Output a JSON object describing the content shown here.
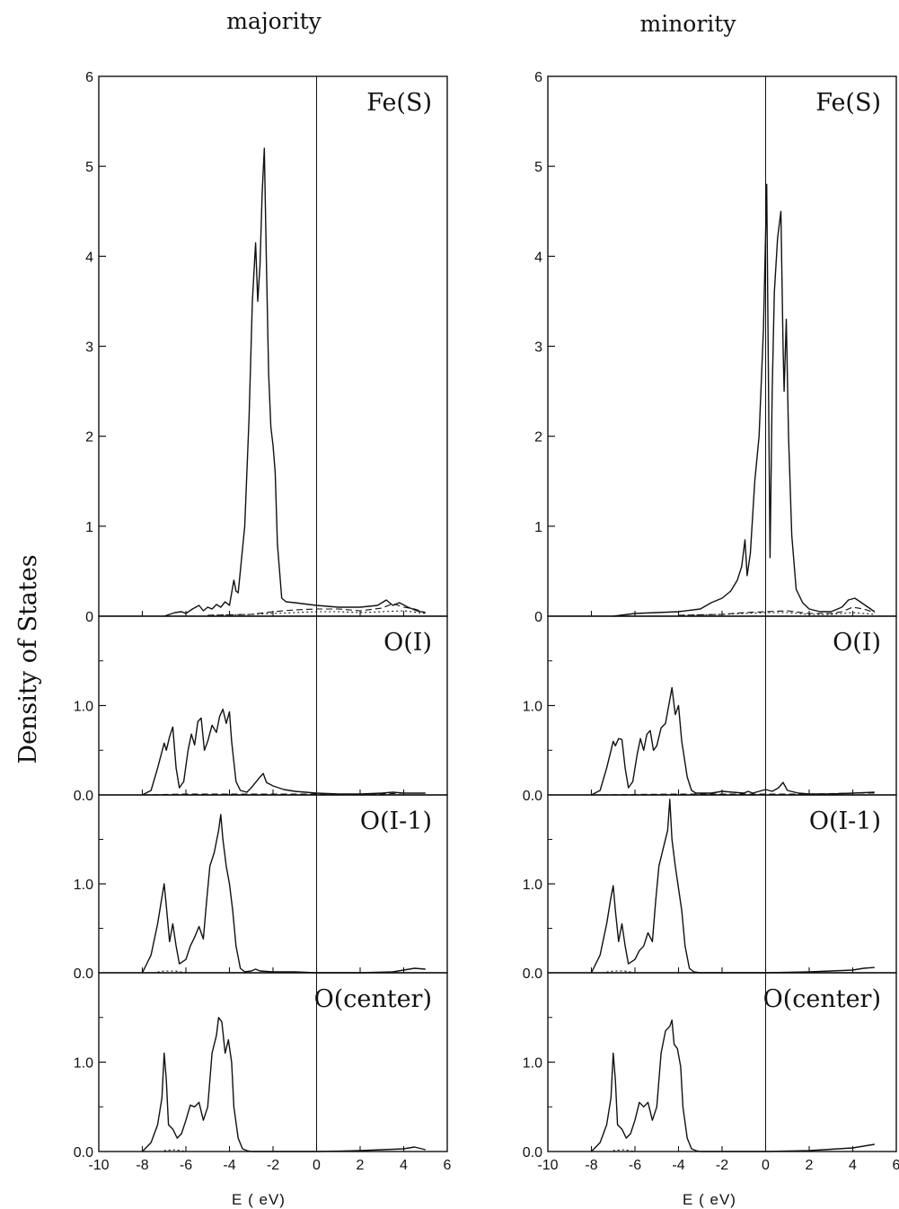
{
  "figure": {
    "ylabel": "Density of States",
    "xlabel": "E ( eV)",
    "columns": [
      {
        "title": "majority"
      },
      {
        "title": "minority"
      }
    ]
  },
  "chart_data": [
    {
      "type": "line",
      "column": "majority",
      "panel_label": "Fe(S)",
      "xlim": [
        -10,
        6
      ],
      "ylim": [
        0,
        6
      ],
      "xticks": [
        -10,
        -8,
        -6,
        -4,
        -2,
        0,
        2,
        4,
        6
      ],
      "yticks": [
        0,
        1,
        2,
        3,
        4,
        5,
        6
      ],
      "ytick_labels": [
        "0",
        "1",
        "2",
        "3",
        "4",
        "5",
        "6"
      ],
      "vline_x": 0,
      "series": [
        {
          "style": "solid",
          "x": [
            -7.0,
            -6.5,
            -6.2,
            -6.0,
            -5.7,
            -5.4,
            -5.2,
            -5.0,
            -4.8,
            -4.6,
            -4.4,
            -4.2,
            -4.0,
            -3.8,
            -3.7,
            -3.6,
            -3.5,
            -3.3,
            -3.1,
            -2.95,
            -2.8,
            -2.7,
            -2.6,
            -2.5,
            -2.4,
            -2.3,
            -2.2,
            -2.1,
            -2.0,
            -1.9,
            -1.8,
            -1.6,
            -1.4,
            -1.0,
            0.0,
            1.0,
            2.0,
            2.8,
            3.2,
            3.5,
            3.8,
            4.2,
            4.6,
            5.0
          ],
          "y": [
            0.0,
            0.04,
            0.05,
            0.03,
            0.08,
            0.12,
            0.06,
            0.1,
            0.08,
            0.13,
            0.1,
            0.16,
            0.12,
            0.4,
            0.28,
            0.26,
            0.5,
            1.0,
            2.2,
            3.5,
            4.15,
            3.5,
            3.9,
            4.7,
            5.2,
            3.9,
            2.7,
            2.1,
            1.9,
            1.6,
            0.8,
            0.2,
            0.16,
            0.15,
            0.12,
            0.1,
            0.1,
            0.12,
            0.18,
            0.12,
            0.15,
            0.1,
            0.06,
            0.04
          ]
        },
        {
          "style": "dashed",
          "x": [
            -5.0,
            -3.0,
            -2.0,
            -1.0,
            0.0,
            1.0,
            2.0,
            3.0,
            3.5,
            4.0,
            4.5,
            5.0
          ],
          "y": [
            0.01,
            0.02,
            0.05,
            0.07,
            0.08,
            0.08,
            0.06,
            0.09,
            0.14,
            0.1,
            0.08,
            0.04
          ]
        },
        {
          "style": "dotted",
          "x": [
            -5.0,
            -3.0,
            -2.0,
            -1.0,
            0.0,
            1.0,
            2.0,
            3.0,
            4.0,
            5.0
          ],
          "y": [
            0.01,
            0.02,
            0.03,
            0.04,
            0.05,
            0.05,
            0.04,
            0.05,
            0.06,
            0.03
          ]
        }
      ]
    },
    {
      "type": "line",
      "column": "majority",
      "panel_label": "O(I)",
      "xlim": [
        -10,
        6
      ],
      "ylim": [
        0,
        2.0
      ],
      "xticks": [
        -10,
        -8,
        -6,
        -4,
        -2,
        0,
        2,
        4,
        6
      ],
      "yticks": [
        0.0,
        1.0
      ],
      "ytick_labels": [
        "0.0",
        "1.0"
      ],
      "minor_yticks": [
        0.5,
        1.5
      ],
      "vline_x": 0,
      "series": [
        {
          "style": "solid",
          "x": [
            -8.0,
            -7.6,
            -7.3,
            -7.0,
            -6.9,
            -6.75,
            -6.6,
            -6.45,
            -6.3,
            -6.1,
            -5.9,
            -5.75,
            -5.6,
            -5.45,
            -5.3,
            -5.15,
            -5.0,
            -4.8,
            -4.6,
            -4.45,
            -4.3,
            -4.15,
            -4.0,
            -3.9,
            -3.7,
            -3.5,
            -3.2,
            -3.0,
            -2.8,
            -2.6,
            -2.45,
            -2.3,
            -2.0,
            -1.5,
            -1.0,
            0.0,
            1.0,
            2.0,
            3.0,
            3.5,
            4.0,
            5.0
          ],
          "y": [
            0.0,
            0.05,
            0.3,
            0.58,
            0.5,
            0.65,
            0.76,
            0.3,
            0.08,
            0.15,
            0.5,
            0.68,
            0.56,
            0.82,
            0.86,
            0.5,
            0.6,
            0.78,
            0.7,
            0.88,
            0.96,
            0.8,
            0.93,
            0.6,
            0.15,
            0.05,
            0.03,
            0.08,
            0.14,
            0.2,
            0.24,
            0.14,
            0.1,
            0.06,
            0.04,
            0.02,
            0.01,
            0.01,
            0.02,
            0.03,
            0.02,
            0.02
          ]
        },
        {
          "style": "dashed",
          "x": [
            -8.0,
            -6.0,
            -4.0,
            -2.0,
            0.0,
            2.0,
            3.0,
            4.0,
            5.0
          ],
          "y": [
            0.0,
            0.01,
            0.01,
            0.01,
            0.01,
            0.01,
            0.01,
            0.02,
            0.02
          ]
        }
      ]
    },
    {
      "type": "line",
      "column": "majority",
      "panel_label": "O(I-1)",
      "xlim": [
        -10,
        6
      ],
      "ylim": [
        0,
        2.0
      ],
      "xticks": [
        -10,
        -8,
        -6,
        -4,
        -2,
        0,
        2,
        4,
        6
      ],
      "yticks": [
        0.0,
        1.0
      ],
      "ytick_labels": [
        "0.0",
        "1.0"
      ],
      "minor_yticks": [
        0.5,
        1.5
      ],
      "vline_x": 0,
      "series": [
        {
          "style": "solid",
          "x": [
            -8.0,
            -7.6,
            -7.3,
            -7.1,
            -7.0,
            -6.9,
            -6.75,
            -6.6,
            -6.45,
            -6.3,
            -6.0,
            -5.8,
            -5.6,
            -5.4,
            -5.2,
            -5.05,
            -4.9,
            -4.7,
            -4.5,
            -4.4,
            -4.3,
            -4.15,
            -4.0,
            -3.85,
            -3.7,
            -3.5,
            -3.3,
            -3.0,
            -2.8,
            -2.6,
            -2.0,
            -1.0,
            0.0,
            2.0,
            3.5,
            4.0,
            4.5,
            5.0
          ],
          "y": [
            0.0,
            0.2,
            0.55,
            0.85,
            1.0,
            0.75,
            0.35,
            0.55,
            0.3,
            0.1,
            0.15,
            0.3,
            0.4,
            0.52,
            0.38,
            0.8,
            1.2,
            1.35,
            1.6,
            1.78,
            1.5,
            1.2,
            1.0,
            0.7,
            0.3,
            0.05,
            0.01,
            0.02,
            0.04,
            0.02,
            0.01,
            0.01,
            0.0,
            0.0,
            0.01,
            0.03,
            0.05,
            0.04
          ]
        },
        {
          "style": "dotted",
          "x": [
            -7.5,
            -7.0,
            -6.5,
            -6.0
          ],
          "y": [
            0.0,
            0.02,
            0.02,
            0.0
          ]
        }
      ]
    },
    {
      "type": "line",
      "column": "majority",
      "panel_label": "O(center)",
      "xlim": [
        -10,
        6
      ],
      "ylim": [
        0,
        2.0
      ],
      "xticks": [
        -10,
        -8,
        -6,
        -4,
        -2,
        0,
        2,
        4,
        6
      ],
      "yticks": [
        0.0,
        1.0
      ],
      "ytick_labels": [
        "0.0",
        "1.0"
      ],
      "minor_yticks": [
        0.5,
        1.5
      ],
      "vline_x": 0,
      "series": [
        {
          "style": "solid",
          "x": [
            -8.0,
            -7.6,
            -7.3,
            -7.1,
            -7.0,
            -6.9,
            -6.8,
            -6.6,
            -6.4,
            -6.2,
            -6.0,
            -5.8,
            -5.6,
            -5.4,
            -5.2,
            -5.0,
            -4.8,
            -4.6,
            -4.5,
            -4.35,
            -4.2,
            -4.05,
            -3.9,
            -3.8,
            -3.6,
            -3.4,
            -3.2,
            -3.0,
            -2.0,
            0.0,
            2.0,
            4.0,
            4.5,
            5.0
          ],
          "y": [
            0.0,
            0.1,
            0.3,
            0.6,
            1.1,
            0.8,
            0.3,
            0.25,
            0.15,
            0.2,
            0.35,
            0.52,
            0.5,
            0.55,
            0.35,
            0.5,
            1.1,
            1.3,
            1.5,
            1.45,
            1.1,
            1.25,
            1.0,
            0.5,
            0.15,
            0.03,
            0.01,
            0.0,
            0.0,
            0.0,
            0.01,
            0.03,
            0.05,
            0.02
          ]
        },
        {
          "style": "dotted",
          "x": [
            -7.0,
            -6.5,
            -6.0
          ],
          "y": [
            0.01,
            0.02,
            0.0
          ]
        }
      ]
    },
    {
      "type": "line",
      "column": "minority",
      "panel_label": "Fe(S)",
      "xlim": [
        -10,
        6
      ],
      "ylim": [
        0,
        6
      ],
      "xticks": [
        -10,
        -8,
        -6,
        -4,
        -2,
        0,
        2,
        4,
        6
      ],
      "yticks": [
        0,
        1,
        2,
        3,
        4,
        5,
        6
      ],
      "ytick_labels": [
        "0",
        "1",
        "2",
        "3",
        "4",
        "5",
        "6"
      ],
      "vline_x": 0,
      "series": [
        {
          "style": "solid",
          "x": [
            -7.0,
            -6.0,
            -5.0,
            -4.0,
            -3.0,
            -2.5,
            -2.0,
            -1.6,
            -1.3,
            -1.1,
            -0.95,
            -0.85,
            -0.7,
            -0.5,
            -0.3,
            -0.1,
            0.05,
            0.2,
            0.3,
            0.4,
            0.55,
            0.7,
            0.8,
            0.85,
            0.95,
            1.05,
            1.2,
            1.4,
            1.7,
            2.0,
            2.5,
            3.0,
            3.5,
            3.8,
            4.1,
            4.4,
            4.7,
            5.0
          ],
          "y": [
            0.0,
            0.03,
            0.04,
            0.05,
            0.08,
            0.15,
            0.2,
            0.28,
            0.4,
            0.55,
            0.85,
            0.45,
            0.7,
            1.5,
            2.0,
            3.2,
            4.8,
            0.65,
            2.5,
            3.6,
            4.2,
            4.5,
            3.0,
            2.5,
            3.3,
            2.0,
            0.9,
            0.3,
            0.15,
            0.08,
            0.05,
            0.05,
            0.1,
            0.18,
            0.2,
            0.15,
            0.1,
            0.05
          ]
        },
        {
          "style": "dashed",
          "x": [
            -4.0,
            -2.0,
            -1.0,
            0.0,
            1.0,
            2.0,
            3.0,
            3.5,
            4.0,
            4.5,
            5.0
          ],
          "y": [
            0.01,
            0.02,
            0.04,
            0.05,
            0.06,
            0.03,
            0.03,
            0.05,
            0.1,
            0.08,
            0.04
          ]
        },
        {
          "style": "dotted",
          "x": [
            -4.0,
            -2.0,
            -1.0,
            0.0,
            1.0,
            2.0,
            3.0,
            4.0,
            5.0
          ],
          "y": [
            0.01,
            0.02,
            0.03,
            0.04,
            0.04,
            0.02,
            0.02,
            0.04,
            0.02
          ]
        }
      ]
    },
    {
      "type": "line",
      "column": "minority",
      "panel_label": "O(I)",
      "xlim": [
        -10,
        6
      ],
      "ylim": [
        0,
        2.0
      ],
      "xticks": [
        -10,
        -8,
        -6,
        -4,
        -2,
        0,
        2,
        4,
        6
      ],
      "yticks": [
        0.0,
        1.0
      ],
      "ytick_labels": [
        "0.0",
        "1.0"
      ],
      "minor_yticks": [
        0.5,
        1.5
      ],
      "vline_x": 0,
      "series": [
        {
          "style": "solid",
          "x": [
            -8.0,
            -7.6,
            -7.3,
            -7.0,
            -6.9,
            -6.75,
            -6.6,
            -6.45,
            -6.3,
            -6.1,
            -5.9,
            -5.75,
            -5.6,
            -5.45,
            -5.3,
            -5.15,
            -5.0,
            -4.8,
            -4.6,
            -4.45,
            -4.3,
            -4.15,
            -4.0,
            -3.85,
            -3.6,
            -3.4,
            -3.2,
            -2.5,
            -2.0,
            -1.0,
            -0.8,
            -0.6,
            0.0,
            0.3,
            0.6,
            0.8,
            1.0,
            1.5,
            2.0,
            3.0,
            4.0,
            5.0
          ],
          "y": [
            0.0,
            0.05,
            0.3,
            0.6,
            0.55,
            0.63,
            0.62,
            0.3,
            0.08,
            0.15,
            0.45,
            0.63,
            0.5,
            0.68,
            0.72,
            0.5,
            0.55,
            0.75,
            0.8,
            1.0,
            1.2,
            0.9,
            1.0,
            0.6,
            0.2,
            0.05,
            0.02,
            0.02,
            0.04,
            0.02,
            0.04,
            0.02,
            0.06,
            0.04,
            0.08,
            0.14,
            0.05,
            0.02,
            0.01,
            0.01,
            0.02,
            0.03
          ]
        },
        {
          "style": "dashed",
          "x": [
            -8.0,
            -4.0,
            0.0,
            2.0,
            4.0,
            5.0
          ],
          "y": [
            0.0,
            0.01,
            0.01,
            0.01,
            0.02,
            0.02
          ]
        }
      ]
    },
    {
      "type": "line",
      "column": "minority",
      "panel_label": "O(I-1)",
      "xlim": [
        -10,
        6
      ],
      "ylim": [
        0,
        2.0
      ],
      "xticks": [
        -10,
        -8,
        -6,
        -4,
        -2,
        0,
        2,
        4,
        6
      ],
      "yticks": [
        0.0,
        1.0
      ],
      "ytick_labels": [
        "0.0",
        "1.0"
      ],
      "minor_yticks": [
        0.5,
        1.5
      ],
      "vline_x": 0,
      "series": [
        {
          "style": "solid",
          "x": [
            -8.0,
            -7.6,
            -7.3,
            -7.1,
            -7.0,
            -6.9,
            -6.75,
            -6.6,
            -6.45,
            -6.3,
            -6.0,
            -5.8,
            -5.6,
            -5.4,
            -5.2,
            -5.05,
            -4.9,
            -4.7,
            -4.5,
            -4.4,
            -4.3,
            -4.15,
            -4.0,
            -3.85,
            -3.7,
            -3.5,
            -3.3,
            -3.0,
            -2.0,
            0.0,
            2.0,
            4.0,
            4.5,
            5.0
          ],
          "y": [
            0.0,
            0.2,
            0.55,
            0.85,
            0.98,
            0.7,
            0.35,
            0.55,
            0.3,
            0.1,
            0.15,
            0.25,
            0.3,
            0.45,
            0.35,
            0.8,
            1.2,
            1.4,
            1.6,
            1.95,
            1.5,
            1.2,
            0.95,
            0.7,
            0.3,
            0.05,
            0.01,
            0.0,
            0.0,
            0.0,
            0.01,
            0.03,
            0.05,
            0.06
          ]
        },
        {
          "style": "dotted",
          "x": [
            -7.5,
            -7.0,
            -6.5,
            -6.0
          ],
          "y": [
            0.0,
            0.02,
            0.02,
            0.0
          ]
        }
      ]
    },
    {
      "type": "line",
      "column": "minority",
      "panel_label": "O(center)",
      "xlim": [
        -10,
        6
      ],
      "ylim": [
        0,
        2.0
      ],
      "xticks": [
        -10,
        -8,
        -6,
        -4,
        -2,
        0,
        2,
        4,
        6
      ],
      "yticks": [
        0.0,
        1.0
      ],
      "ytick_labels": [
        "0.0",
        "1.0"
      ],
      "minor_yticks": [
        0.5,
        1.5
      ],
      "vline_x": 0,
      "series": [
        {
          "style": "solid",
          "x": [
            -8.0,
            -7.6,
            -7.3,
            -7.1,
            -7.0,
            -6.9,
            -6.8,
            -6.6,
            -6.4,
            -6.2,
            -6.0,
            -5.8,
            -5.6,
            -5.4,
            -5.2,
            -5.0,
            -4.8,
            -4.6,
            -4.4,
            -4.3,
            -4.2,
            -4.05,
            -3.9,
            -3.8,
            -3.6,
            -3.4,
            -3.2,
            -3.0,
            -2.0,
            0.0,
            2.0,
            4.0,
            4.5,
            5.0
          ],
          "y": [
            0.0,
            0.1,
            0.3,
            0.6,
            1.1,
            0.8,
            0.3,
            0.25,
            0.15,
            0.2,
            0.35,
            0.55,
            0.5,
            0.55,
            0.35,
            0.5,
            1.1,
            1.35,
            1.4,
            1.47,
            1.2,
            1.15,
            0.95,
            0.5,
            0.15,
            0.03,
            0.01,
            0.0,
            0.0,
            0.0,
            0.01,
            0.04,
            0.06,
            0.08
          ]
        },
        {
          "style": "dotted",
          "x": [
            -7.0,
            -6.5,
            -6.0
          ],
          "y": [
            0.01,
            0.02,
            0.0
          ]
        }
      ]
    }
  ]
}
